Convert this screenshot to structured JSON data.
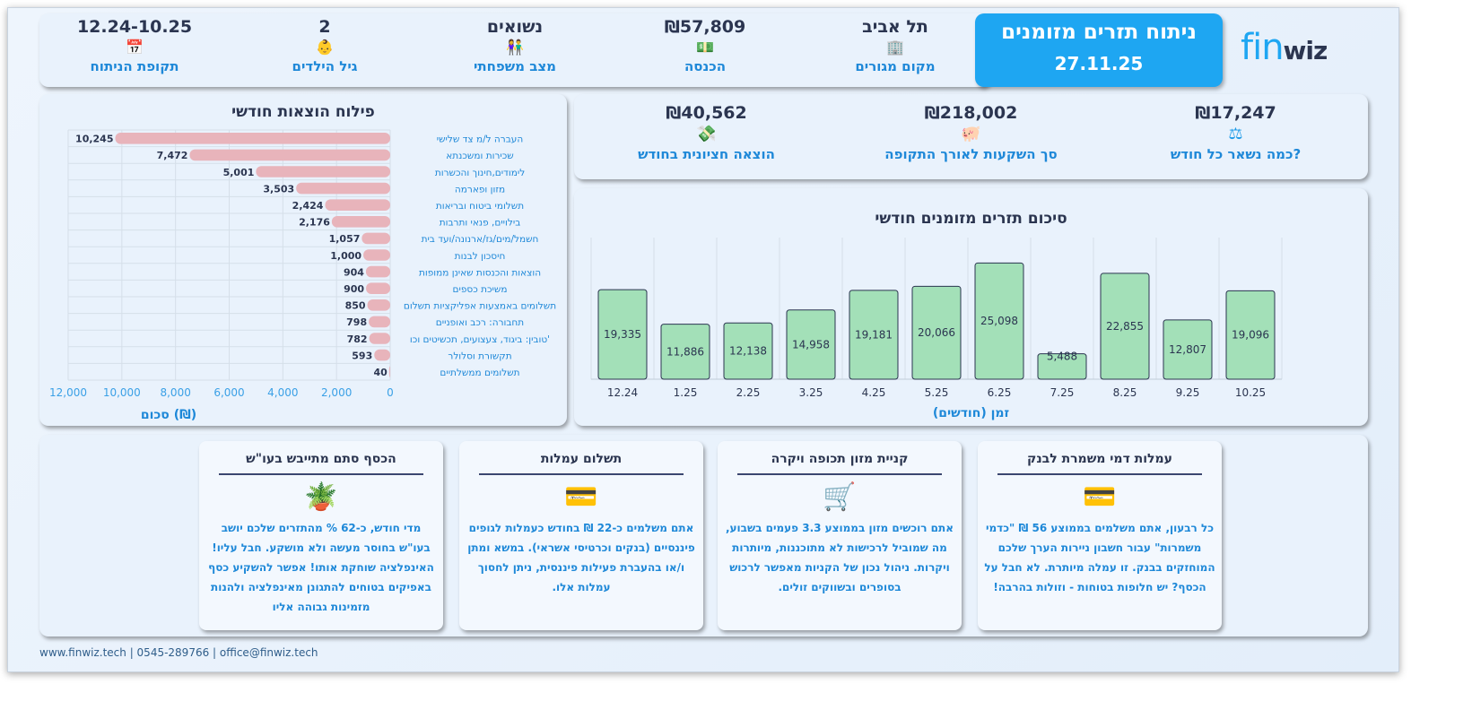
{
  "header": {
    "title": "ניתוח תזרים מזומנים",
    "date": "27.11.25",
    "logo": "finwiz",
    "info": [
      {
        "value": "תל אביב",
        "label": "מקום מגורים",
        "icon": "buildings-icon"
      },
      {
        "value": "₪57,809",
        "label": "הכנסה",
        "icon": "banknote-icon"
      },
      {
        "value": "נשואים",
        "label": "מצב משפחתי",
        "icon": "couple-icon"
      },
      {
        "value": "2",
        "label": "גיל הילדים",
        "icon": "baby-icon"
      },
      {
        "value": "12.24-10.25",
        "label": "תקופת הניתוח",
        "icon": "calendar-icon"
      }
    ]
  },
  "kpis": [
    {
      "value": "₪17,247",
      "label": "כמה נשאר כל חודש?",
      "icon": "scale-icon"
    },
    {
      "value": "₪218,002",
      "label": "סך השקעות לאורך התקופה",
      "icon": "piggy-bank-icon"
    },
    {
      "value": "₪40,562",
      "label": "הוצאה חציונית בחודש",
      "icon": "money-stack-icon"
    }
  ],
  "chart_data": [
    {
      "type": "bar",
      "orientation": "horizontal",
      "title": "פילוח הוצאות חודשי",
      "xlabel": "סכום (₪)",
      "xlim": [
        0,
        12000
      ],
      "xticks": [
        "12,000",
        "10,000",
        "8,000",
        "6,000",
        "4,000",
        "2,000",
        "0"
      ],
      "xtick_values": [
        12000,
        10000,
        8000,
        6000,
        4000,
        2000,
        0
      ],
      "grid": true,
      "color": "#e8b4bb",
      "categories": [
        "העברה ל/מ צד שלישי",
        "שכירות ומשכנתא",
        "לימודים,חינוך והכשרות",
        "מזון ופארמה",
        "תשלומי ביטוח ובריאות",
        "בילויים, פנאי ותרבות",
        "חשמל/מים/גז/ארנונה/ועד בית",
        "חיסכון לבנות",
        "הוצאות והכנסות שאינן ממופות",
        "משיכת כספים",
        "תשלומים באמצעות אפליקציות תשלום",
        "תחבורה: רכב ואופניים",
        "'טובין: ביגוד, צעצועים, תכשיטים וכו",
        "תקשורת וסלולר",
        "תשלומים ממשלתיים"
      ],
      "values": [
        10245,
        7472,
        5001,
        3503,
        2424,
        2176,
        1057,
        1000,
        904,
        900,
        850,
        798,
        782,
        593,
        40
      ],
      "labels": [
        "10,245",
        "7,472",
        "5,001",
        "3,503",
        "2,424",
        "2,176",
        "1,057",
        "1,000",
        "904",
        "900",
        "850",
        "798",
        "782",
        "593",
        "40"
      ]
    },
    {
      "type": "bar",
      "title": "סיכום תזרים מזומנים חודשי",
      "xlabel": "זמן (חודשים)",
      "ylim": [
        0,
        30000
      ],
      "grid": true,
      "color": "#a3e0b8",
      "categories": [
        "12.24",
        "1.25",
        "2.25",
        "3.25",
        "4.25",
        "5.25",
        "6.25",
        "7.25",
        "8.25",
        "9.25",
        "10.25"
      ],
      "values": [
        19335,
        11886,
        12138,
        14958,
        19181,
        20066,
        25098,
        5488,
        22855,
        12807,
        19096
      ],
      "labels": [
        "19,335",
        "11,886",
        "12,138",
        "14,958",
        "19,181",
        "20,066",
        "25,098",
        "5,488",
        "22,855",
        "12,807",
        "19,096"
      ]
    }
  ],
  "cards": [
    {
      "title": "עמלות דמי משמרת לבנק",
      "icon": "hand-card-icon",
      "text": "כל רבעון, אתם משלמים בממוצע 56 ₪ \"כדמי משמרות\" עבור חשבון ניירות הערך שלכם המוחזקים בבנק. זו עמלה מיותרת. לא חבל על הכסף? יש חלופות בטוחות - וזולות בהרבה!"
    },
    {
      "title": "קניית מזון תכופה ויקרה",
      "icon": "shopping-cart-icon",
      "text": "אתם רוכשים מזון בממוצע 3.3 פעמים בשבוע, מה שמוביל לרכישות לא מתוכננות, מיותרות ויקרות. ניהול נכון של הקניות מאפשר לרכוש בסופרים ובשווקים זולים."
    },
    {
      "title": "תשלום עמלות",
      "icon": "hand-card-icon",
      "text": "אתם משלמים כ-22 ₪ בחודש כעמלות לגופים פיננסיים (בנקים וכרטיסי אשראי). במשא ומתן ו/או בהעברת פעילות פיננסית, ניתן לחסוך עמלות אלו."
    },
    {
      "title": "הכסף סתם מתייבש בעו\"ש",
      "icon": "money-plant-icon",
      "text": "מדי חודש, כ-62 % מהתזרים שלכם יושב בעו\"ש בחוסר מעשה ולא מושקע. חבל עליו! האינפלציה שוחקת אותו! אפשר להשקיע כסף באפיקים בטוחים להתגונן מאינפלציה ולהנות מזמינות גבוהה אליו"
    }
  ],
  "footer": "www.finwiz.tech | 0545-289766 | office@finwiz.tech"
}
